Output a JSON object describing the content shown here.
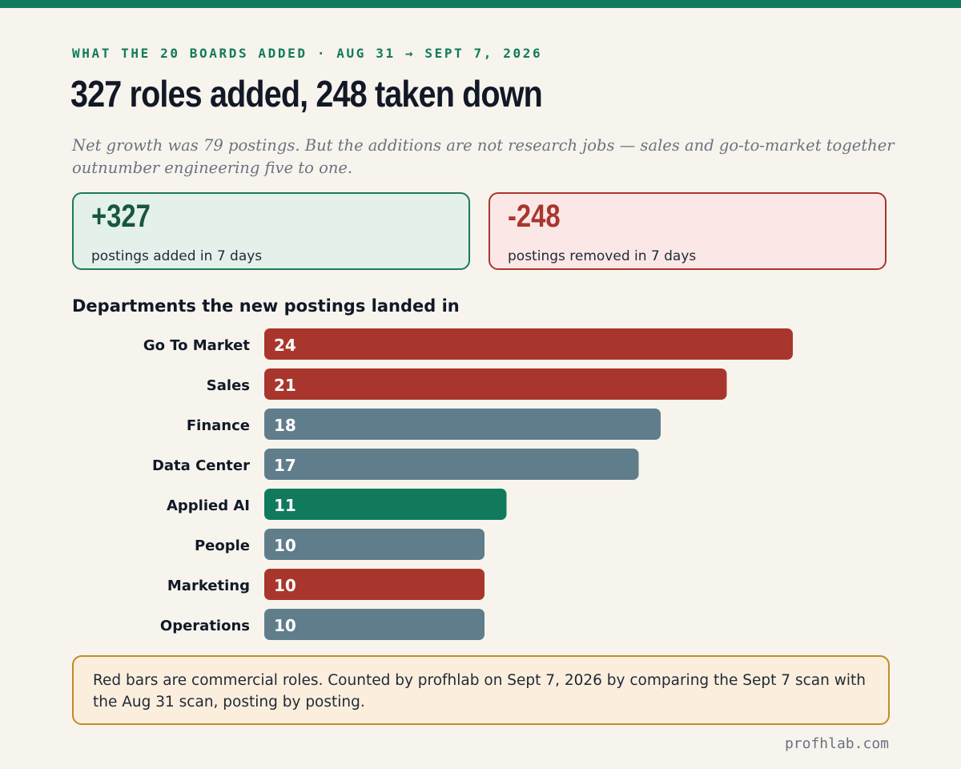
{
  "header": {
    "eyebrow": "WHAT THE 20 BOARDS ADDED · AUG 31 → SEPT 7, 2026",
    "headline": "327 roles added, 248 taken down",
    "deck": "Net growth was 79 postings. But the additions are not research jobs — sales and go-to-market together outnumber engineering five to one."
  },
  "stats": {
    "added": {
      "value": "+327",
      "label": "postings added in 7 days"
    },
    "removed": {
      "value": "-248",
      "label": "postings removed in 7 days"
    }
  },
  "note": "Red bars are commercial roles. Counted by profhlab on Sept 7, 2026 by comparing the Sept 7 scan with the Aug 31 scan, posting by posting.",
  "footer": "profhlab.com",
  "colors": {
    "accent": "#127a5c",
    "commercial": "#a9362d",
    "other": "#607d8b",
    "applied_ai": "#127a5c"
  },
  "chart_data": {
    "type": "bar",
    "orientation": "horizontal",
    "title": "Departments the new postings landed in",
    "categories": [
      "Go To Market",
      "Sales",
      "Finance",
      "Data Center",
      "Applied AI",
      "People",
      "Marketing",
      "Operations"
    ],
    "values": [
      24,
      21,
      18,
      17,
      11,
      10,
      10,
      10
    ],
    "groups": [
      "commercial",
      "commercial",
      "other",
      "other",
      "applied_ai",
      "other",
      "commercial",
      "other"
    ],
    "data_labels": true,
    "grid": false
  }
}
